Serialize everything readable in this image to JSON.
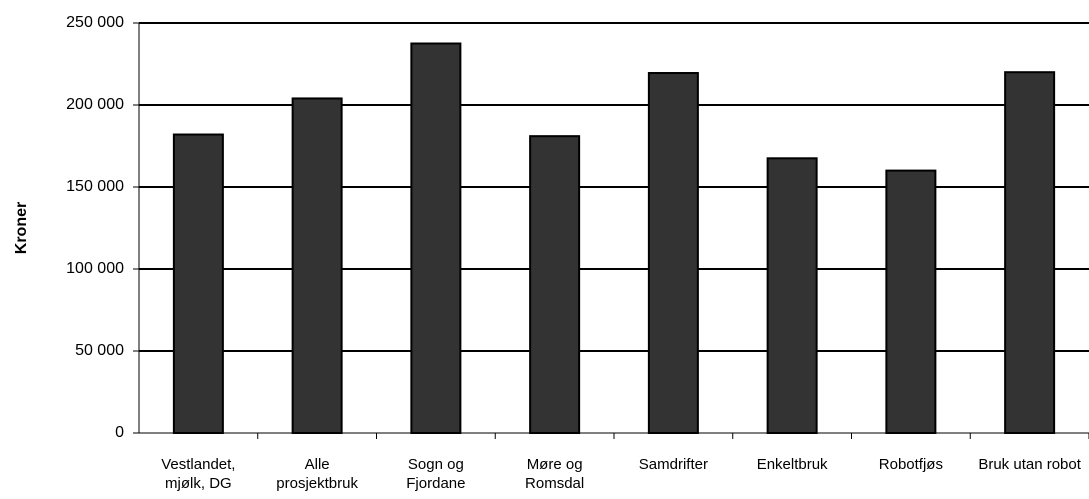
{
  "chart_data": {
    "type": "bar",
    "y_label": "Kroner",
    "categories": [
      "Vestlandet, mjølk, DG",
      "Alle prosjektbruk",
      "Sogn og Fjordane",
      "Møre og Romsdal",
      "Samdrifter",
      "Enkeltbruk",
      "Robotfjøs",
      "Bruk utan robot"
    ],
    "values": [
      182000,
      204000,
      237500,
      181000,
      219500,
      167500,
      160000,
      220000
    ],
    "color": "#333333",
    "ylim": [
      0,
      250000
    ],
    "yticks": [
      0,
      {
        "value": 50000,
        "label": "50 000"
      },
      {
        "value": 100000,
        "label": "100 000"
      },
      {
        "value": 150000,
        "label": "150 000"
      },
      {
        "value": 200000,
        "label": "200 000"
      },
      {
        "value": 250000,
        "label": "250 000"
      }
    ],
    "grid": true
  }
}
